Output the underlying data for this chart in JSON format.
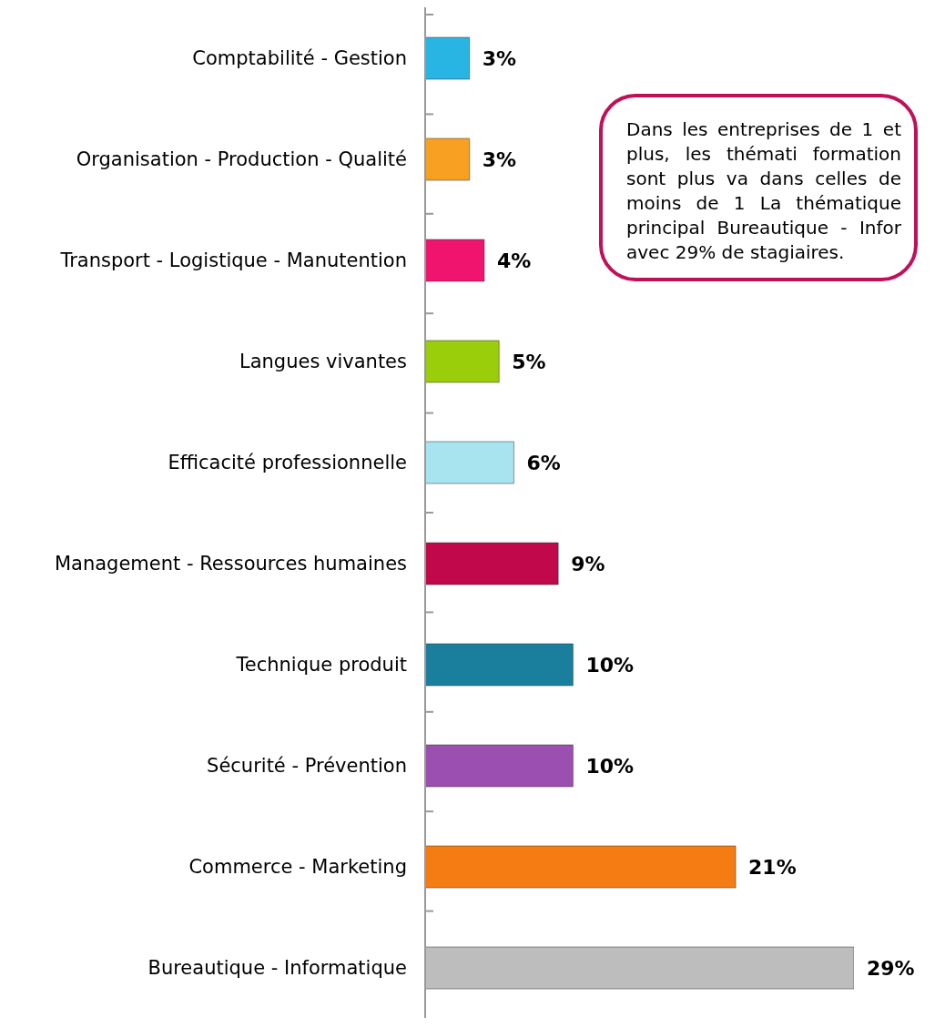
{
  "chart_data": {
    "type": "bar",
    "orientation": "horizontal",
    "categories": [
      "Comptabilité - Gestion",
      "Organisation - Production - Qualité",
      "Transport - Logistique - Manutention",
      "Langues vivantes",
      "Efficacité professionnelle",
      "Management - Ressources humaines",
      "Technique produit",
      "Sécurité - Prévention",
      "Commerce - Marketing",
      "Bureautique - Informatique"
    ],
    "values": [
      3,
      3,
      4,
      5,
      6,
      9,
      10,
      10,
      21,
      29
    ],
    "value_labels": [
      "3%",
      "3%",
      "4%",
      "5%",
      "6%",
      "9%",
      "10%",
      "10%",
      "21%",
      "29%"
    ],
    "colors": [
      "#29b5e3",
      "#f7a021",
      "#f0146e",
      "#9acd0a",
      "#a8e4f0",
      "#c0084a",
      "#1a7f9c",
      "#9b4fb0",
      "#f57c12",
      "#bdbdbd"
    ],
    "annotations": [
      "Dans les entreprises de 1 et plus, les thémati formation sont plus va dans celles de moins de 1 La thématique principal Bureautique - Infor avec 29% de stagiaires."
    ]
  }
}
